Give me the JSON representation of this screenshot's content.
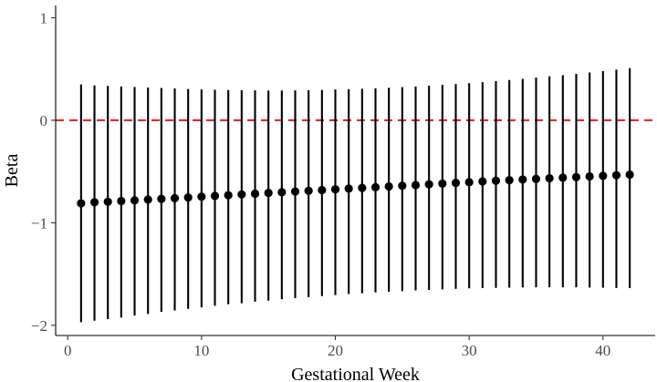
{
  "chart_data": {
    "type": "scatter",
    "title": "",
    "xlabel": "Gestational Week",
    "ylabel": "Beta",
    "xlim": [
      -0.9,
      43.9
    ],
    "ylim": [
      -2.1,
      1.12
    ],
    "xticks": [
      0,
      10,
      20,
      30,
      40
    ],
    "yticks": [
      -2,
      -1,
      0,
      1
    ],
    "xtick_labels": [
      "0",
      "10",
      "20",
      "30",
      "40"
    ],
    "ytick_labels": [
      "−2",
      "−1",
      "0",
      "1"
    ],
    "grid": false,
    "legend": "none",
    "reference_line": {
      "y": 0,
      "style": "dashed",
      "color": "#e41a1c"
    },
    "colors": {
      "points": "#000000",
      "error_bars": "#000000",
      "axis": "#000000"
    },
    "series": [
      {
        "x": [
          1,
          2,
          3,
          4,
          5,
          6,
          7,
          8,
          9,
          10,
          11,
          12,
          13,
          14,
          15,
          16,
          17,
          18,
          19,
          20,
          21,
          22,
          23,
          24,
          25,
          26,
          27,
          28,
          29,
          30,
          31,
          32,
          33,
          34,
          35,
          36,
          37,
          38,
          39,
          40,
          41,
          42
        ],
        "y": [
          -0.81,
          -0.8,
          -0.795,
          -0.788,
          -0.781,
          -0.774,
          -0.767,
          -0.76,
          -0.753,
          -0.746,
          -0.738,
          -0.731,
          -0.724,
          -0.717,
          -0.709,
          -0.702,
          -0.695,
          -0.688,
          -0.681,
          -0.674,
          -0.667,
          -0.66,
          -0.653,
          -0.646,
          -0.639,
          -0.632,
          -0.625,
          -0.618,
          -0.611,
          -0.604,
          -0.597,
          -0.59,
          -0.584,
          -0.578,
          -0.572,
          -0.566,
          -0.56,
          -0.554,
          -0.548,
          -0.542,
          -0.536,
          -0.53
        ],
        "lower": [
          -1.97,
          -1.955,
          -1.94,
          -1.925,
          -1.905,
          -1.89,
          -1.87,
          -1.855,
          -1.84,
          -1.825,
          -1.81,
          -1.795,
          -1.785,
          -1.77,
          -1.76,
          -1.745,
          -1.735,
          -1.725,
          -1.715,
          -1.705,
          -1.695,
          -1.687,
          -1.68,
          -1.673,
          -1.667,
          -1.66,
          -1.655,
          -1.65,
          -1.645,
          -1.64,
          -1.638,
          -1.635,
          -1.633,
          -1.631,
          -1.63,
          -1.63,
          -1.63,
          -1.63,
          -1.632,
          -1.634,
          -1.636,
          -1.638
        ],
        "upper": [
          0.35,
          0.34,
          0.335,
          0.33,
          0.325,
          0.32,
          0.315,
          0.31,
          0.305,
          0.3,
          0.298,
          0.295,
          0.293,
          0.292,
          0.291,
          0.291,
          0.292,
          0.294,
          0.296,
          0.3,
          0.303,
          0.307,
          0.312,
          0.317,
          0.323,
          0.33,
          0.337,
          0.345,
          0.353,
          0.362,
          0.372,
          0.382,
          0.393,
          0.404,
          0.416,
          0.428,
          0.44,
          0.453,
          0.466,
          0.48,
          0.494,
          0.508
        ]
      }
    ]
  }
}
